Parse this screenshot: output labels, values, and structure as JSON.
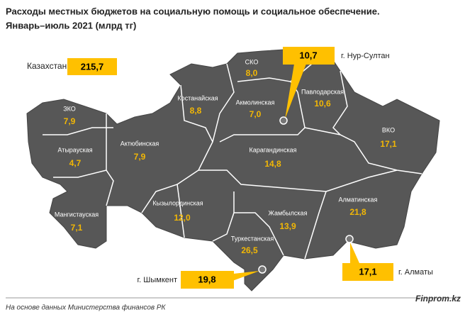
{
  "header": {
    "title": "Расходы местных бюджетов на социальную помощь и социальное обеспечение.",
    "subtitle": "Январь–июль 2021 (млрд тг)"
  },
  "total": {
    "label": "Казахстан",
    "value": "215,7"
  },
  "regions": [
    {
      "name": "СКО",
      "value": "8,0"
    },
    {
      "name": "Костанайская",
      "value": "8,8"
    },
    {
      "name": "Акмолинская",
      "value": "7,0"
    },
    {
      "name": "Павлодарская",
      "value": "10,6"
    },
    {
      "name": "ЗКО",
      "value": "7,9"
    },
    {
      "name": "Атырауская",
      "value": "4,7"
    },
    {
      "name": "Актюбинская",
      "value": "7,9"
    },
    {
      "name": "Карагандинская",
      "value": "14,8"
    },
    {
      "name": "ВКО",
      "value": "17,1"
    },
    {
      "name": "Алматинская",
      "value": "21,8"
    },
    {
      "name": "Кызылординская",
      "value": "12,0"
    },
    {
      "name": "Мангистауская",
      "value": "7,1"
    },
    {
      "name": "Жамбылская",
      "value": "13,9"
    },
    {
      "name": "Туркестанская",
      "value": "26,5"
    }
  ],
  "cities": [
    {
      "name": "г. Нур-Султан",
      "value": "10,7"
    },
    {
      "name": "г. Шымкент",
      "value": "19,8"
    },
    {
      "name": "г. Алматы",
      "value": "17,1"
    }
  ],
  "footer": {
    "source": "На основе данных Министерства финансов РК",
    "brand": "Finprom.kz"
  }
}
